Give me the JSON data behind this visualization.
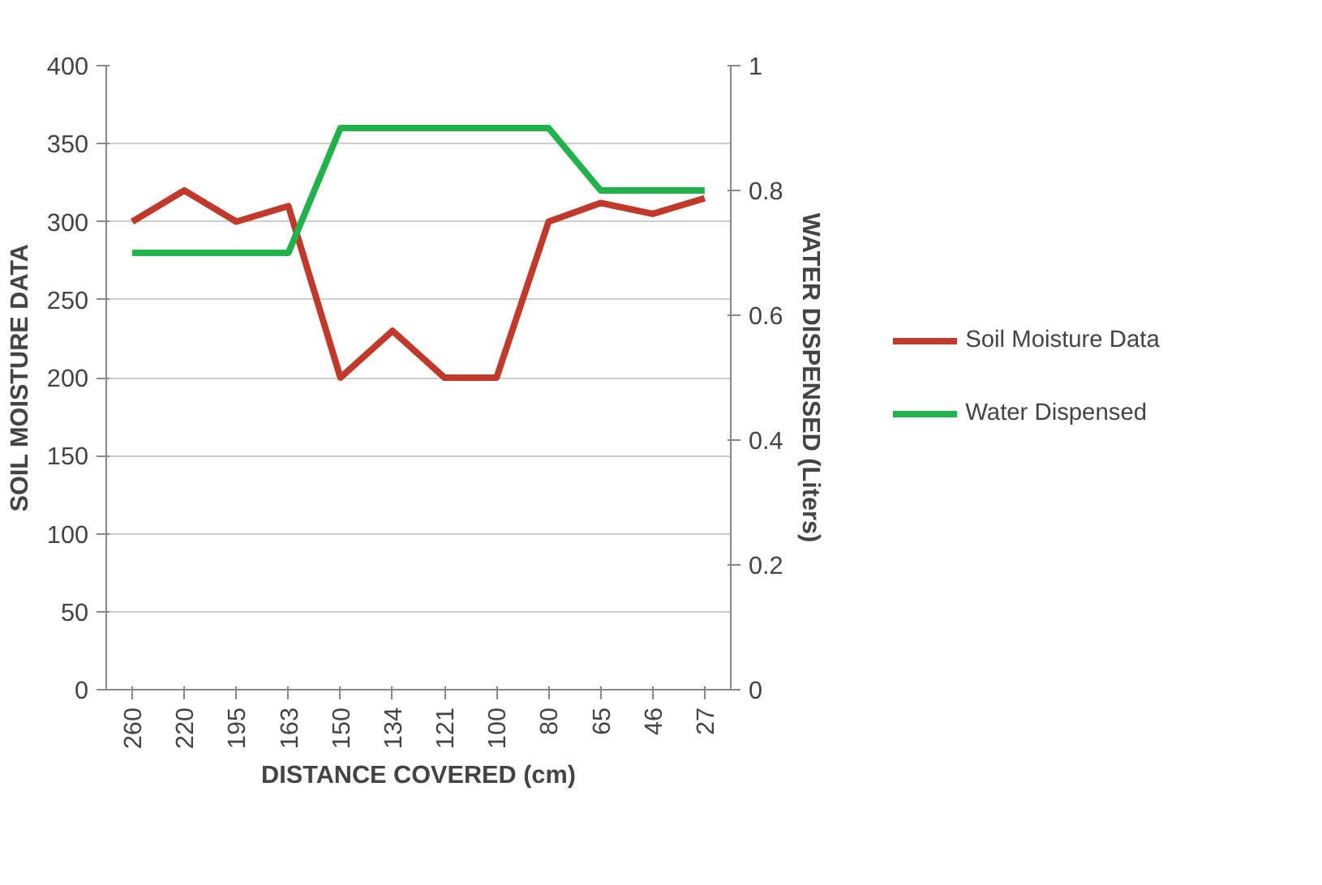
{
  "chart_data": {
    "type": "line",
    "xlabel": "DISTANCE COVERED (cm)",
    "ylabel": "SOIL MOISTURE DATA",
    "y2label": "WATER DISPENSED (Liters)",
    "categories": [
      "260",
      "220",
      "195",
      "163",
      "150",
      "134",
      "121",
      "100",
      "80",
      "65",
      "46",
      "27"
    ],
    "series": [
      {
        "name": "Soil Moisture Data",
        "color": "#c0392b",
        "values": [
          300,
          320,
          300,
          310,
          200,
          230,
          200,
          200,
          300,
          312,
          305,
          315
        ]
      },
      {
        "name": "Water Dispensed",
        "color": "#22b24c",
        "axis": "y2",
        "values": [
          0.7,
          0.7,
          0.7,
          0.7,
          0.9,
          0.9,
          0.9,
          0.9,
          0.9,
          0.8,
          0.8,
          0.8
        ]
      }
    ],
    "ylim": [
      0,
      400
    ],
    "yticks": [
      0,
      50,
      100,
      150,
      200,
      250,
      300,
      350,
      400
    ],
    "y2lim": [
      0,
      1
    ],
    "y2ticks": [
      0,
      0.2,
      0.4,
      0.6,
      0.8,
      1
    ],
    "grid": "y",
    "legend": "right",
    "marker": "none",
    "line_style": "solid"
  }
}
